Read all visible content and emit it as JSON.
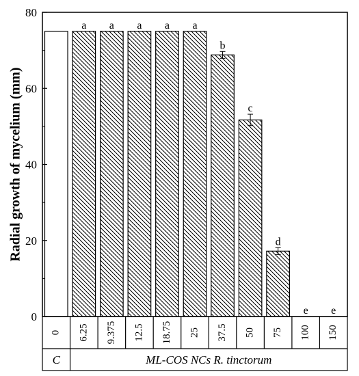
{
  "chart_data": {
    "type": "bar",
    "ylabel": "Radial growth of mycelium (mm)",
    "ylim": [
      0,
      80
    ],
    "yticks": [
      0,
      20,
      40,
      60,
      80
    ],
    "categories": [
      "0",
      "6.25",
      "9.375",
      "12.5",
      "18.75",
      "25",
      "37.5",
      "50",
      "75",
      "100",
      "150"
    ],
    "values": [
      75,
      75,
      75,
      75,
      75,
      75,
      68.8,
      51.7,
      17.2,
      0,
      0
    ],
    "errors": [
      0,
      0,
      0,
      0,
      0,
      0,
      0.9,
      1.5,
      0.9,
      0,
      0
    ],
    "significance_letters": [
      "",
      "a",
      "a",
      "a",
      "a",
      "a",
      "b",
      "c",
      "d",
      "e",
      "e"
    ],
    "bar_fill": [
      "plain",
      "hatched",
      "hatched",
      "hatched",
      "hatched",
      "hatched",
      "hatched",
      "hatched",
      "hatched",
      "hatched",
      "hatched"
    ],
    "group_labels": [
      {
        "label": "C",
        "span": [
          0,
          0
        ]
      },
      {
        "label": "ML-COS NCs R. tinctorum",
        "span": [
          1,
          10
        ]
      }
    ],
    "grid": false
  }
}
